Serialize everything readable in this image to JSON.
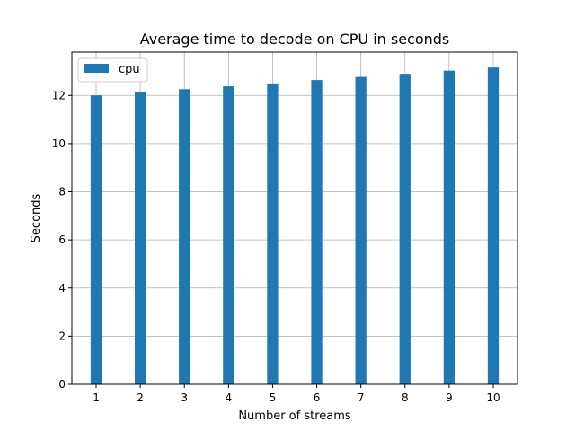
{
  "chart_data": {
    "type": "bar",
    "title": "Average time to decode on CPU in seconds",
    "xlabel": "Number of streams",
    "ylabel": "Seconds",
    "categories": [
      "1",
      "2",
      "3",
      "4",
      "5",
      "6",
      "7",
      "8",
      "9",
      "10"
    ],
    "series": [
      {
        "name": "cpu",
        "color": "#1f77b4",
        "values": [
          12.0,
          12.12,
          12.26,
          12.38,
          12.5,
          12.64,
          12.77,
          12.9,
          13.03,
          13.16
        ]
      }
    ],
    "ylim": [
      0,
      13.8
    ],
    "yticks": [
      "0",
      "2",
      "4",
      "6",
      "8",
      "10",
      "12"
    ],
    "grid": true,
    "legend_position": "top-left"
  }
}
